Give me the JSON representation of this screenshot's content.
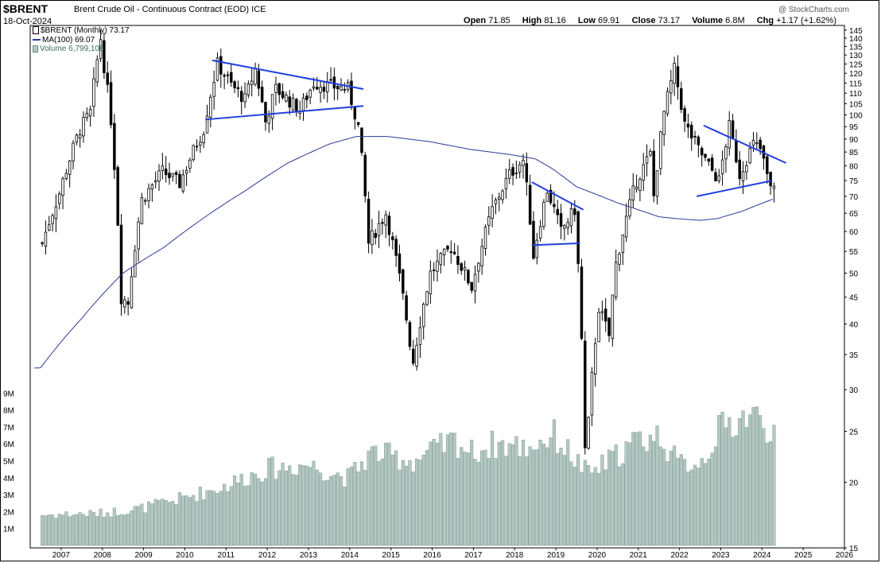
{
  "header": {
    "symbol": "$BRENT",
    "name": "Brent Crude Oil - Continuous Contract (EOD) ICE",
    "date": "18-Oct-2024",
    "watermark": "@ StockCharts.com",
    "open_label": "Open",
    "open": "71.85",
    "high_label": "High",
    "high": "81.16",
    "low_label": "Low",
    "low": "69.91",
    "close_label": "Close",
    "close": "73.17",
    "volume_label": "Volume",
    "volume": "6.8M",
    "chg_label": "Chg",
    "chg": "+1.17 (+1.62%)"
  },
  "legend": {
    "price": "$BRENT (Monthly) 73.17",
    "ma": "MA(100) 69.07",
    "volume": "Volume 6,799,108"
  },
  "colors": {
    "up_candle": "#ffffff",
    "down_candle": "#000000",
    "ma_line": "#2a3a9c",
    "trendline": "#1f3fe0",
    "volume_bar": "#b4c8c2",
    "volume_edge": "#6f8c85"
  },
  "chart_data": {
    "type": "candlestick",
    "period": "monthly",
    "ylim": [
      15,
      148
    ],
    "y_scale": "log",
    "y_ticks": [
      15,
      20,
      25,
      30,
      35,
      40,
      45,
      50,
      55,
      60,
      65,
      70,
      75,
      80,
      85,
      90,
      95,
      100,
      105,
      110,
      115,
      120,
      125,
      130,
      135,
      140,
      145
    ],
    "volume_ticks": [
      "1M",
      "2M",
      "3M",
      "4M",
      "5M",
      "6M",
      "7M",
      "8M",
      "9M"
    ],
    "x_tick_labels": [
      "2007",
      "2008",
      "2009",
      "2010",
      "2011",
      "2012",
      "2013",
      "2014",
      "2015",
      "2016",
      "2017",
      "2018",
      "2019",
      "2020",
      "2021",
      "2022",
      "2023",
      "2024",
      "2025",
      "2026"
    ],
    "close_anchors": [
      [
        "2007-01",
        57
      ],
      [
        "2007-06",
        71
      ],
      [
        "2007-12",
        94
      ],
      [
        "2008-03",
        101
      ],
      [
        "2008-06",
        140
      ],
      [
        "2008-07",
        124
      ],
      [
        "2008-09",
        98
      ],
      [
        "2008-12",
        45
      ],
      [
        "2009-02",
        44
      ],
      [
        "2009-06",
        69
      ],
      [
        "2009-12",
        78
      ],
      [
        "2010-05",
        74
      ],
      [
        "2010-12",
        94
      ],
      [
        "2011-04",
        125
      ],
      [
        "2011-08",
        114
      ],
      [
        "2011-12",
        107
      ],
      [
        "2012-03",
        122
      ],
      [
        "2012-06",
        97
      ],
      [
        "2012-09",
        112
      ],
      [
        "2013-04",
        102
      ],
      [
        "2013-08",
        115
      ],
      [
        "2014-06",
        112
      ],
      [
        "2014-09",
        95
      ],
      [
        "2014-12",
        57
      ],
      [
        "2015-05",
        65
      ],
      [
        "2015-12",
        37
      ],
      [
        "2016-01",
        34
      ],
      [
        "2016-06",
        50
      ],
      [
        "2016-12",
        56
      ],
      [
        "2017-06",
        47
      ],
      [
        "2017-12",
        66
      ],
      [
        "2018-05",
        77
      ],
      [
        "2018-09",
        82
      ],
      [
        "2018-12",
        54
      ],
      [
        "2019-04",
        72
      ],
      [
        "2019-08",
        60
      ],
      [
        "2019-12",
        66
      ],
      [
        "2020-03",
        23
      ],
      [
        "2020-04",
        26
      ],
      [
        "2020-07",
        43
      ],
      [
        "2020-10",
        38
      ],
      [
        "2020-12",
        52
      ],
      [
        "2021-06",
        75
      ],
      [
        "2021-10",
        84
      ],
      [
        "2021-11",
        70
      ],
      [
        "2022-02",
        101
      ],
      [
        "2022-05",
        122
      ],
      [
        "2022-08",
        96
      ],
      [
        "2022-12",
        86
      ],
      [
        "2023-03",
        80
      ],
      [
        "2023-06",
        75
      ],
      [
        "2023-09",
        95
      ],
      [
        "2023-12",
        77
      ],
      [
        "2024-04",
        88
      ],
      [
        "2024-06",
        86
      ],
      [
        "2024-09",
        72
      ],
      [
        "2024-10",
        73.17
      ]
    ],
    "volume_anchors_millions": [
      [
        "2007-01",
        1.8
      ],
      [
        "2008-06",
        1.9
      ],
      [
        "2009-06",
        2.2
      ],
      [
        "2010-06",
        2.8
      ],
      [
        "2011-06",
        3.5
      ],
      [
        "2012-06",
        4.5
      ],
      [
        "2013-06",
        4.8
      ],
      [
        "2014-06",
        4.0
      ],
      [
        "2015-01",
        5.5
      ],
      [
        "2016-01",
        5.0
      ],
      [
        "2016-06",
        5.5
      ],
      [
        "2017-01",
        6.2
      ],
      [
        "2017-06",
        5.5
      ],
      [
        "2018-01",
        6.0
      ],
      [
        "2018-10",
        5.8
      ],
      [
        "2019-06",
        6.5
      ],
      [
        "2020-04",
        4.2
      ],
      [
        "2020-10",
        5.0
      ],
      [
        "2021-06",
        6.2
      ],
      [
        "2022-01",
        6.5
      ],
      [
        "2022-06",
        4.8
      ],
      [
        "2023-01",
        5.0
      ],
      [
        "2023-06",
        6.8
      ],
      [
        "2024-03",
        7.8
      ],
      [
        "2024-10",
        6.8
      ]
    ],
    "ma100_anchors": [
      [
        "2007-01",
        33
      ],
      [
        "2008-01",
        41
      ],
      [
        "2009-01",
        50
      ],
      [
        "2010-01",
        56
      ],
      [
        "2011-01",
        64
      ],
      [
        "2012-01",
        72
      ],
      [
        "2013-01",
        81
      ],
      [
        "2014-01",
        88
      ],
      [
        "2014-09",
        91
      ],
      [
        "2015-06",
        91
      ],
      [
        "2016-06",
        89
      ],
      [
        "2017-06",
        86
      ],
      [
        "2018-06",
        84
      ],
      [
        "2019-01",
        82.5
      ],
      [
        "2019-06",
        79
      ],
      [
        "2020-01",
        73
      ],
      [
        "2021-01",
        68
      ],
      [
        "2022-01",
        64
      ],
      [
        "2022-06",
        63.5
      ],
      [
        "2023-01",
        63
      ],
      [
        "2023-06",
        63.5
      ],
      [
        "2024-01",
        65.5
      ],
      [
        "2024-10",
        69.07
      ]
    ],
    "trendlines": [
      {
        "from": [
          "2011-03",
          127
        ],
        "to": [
          "2014-11",
          112
        ]
      },
      {
        "from": [
          "2011-01",
          98
        ],
        "to": [
          "2014-11",
          104
        ]
      },
      {
        "from": [
          "2018-12",
          74.5
        ],
        "to": [
          "2020-03",
          66
        ]
      },
      {
        "from": [
          "2018-12",
          56.5
        ],
        "to": [
          "2020-02",
          57
        ]
      },
      {
        "from": [
          "2023-02",
          95.5
        ],
        "to": [
          "2025-02",
          81
        ]
      },
      {
        "from": [
          "2022-12",
          70
        ],
        "to": [
          "2024-10",
          75
        ]
      }
    ]
  }
}
